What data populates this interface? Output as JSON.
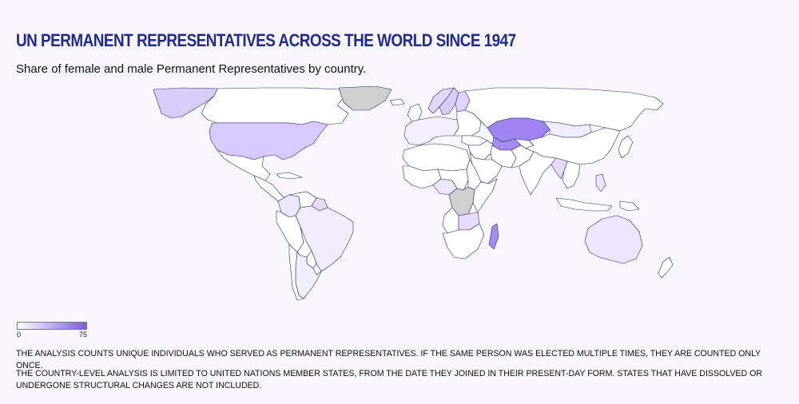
{
  "header": {
    "title": "UN PERMANENT REPRESENTATIVES ACROSS THE WORLD SINCE 1947",
    "subtitle": "Share of female and male Permanent Representatives by country."
  },
  "legend": {
    "min_label": "0",
    "max_label": "75",
    "color_low": "#ffffff",
    "color_high": "#7b5be0"
  },
  "colors": {
    "background": "#f9f6fd",
    "title": "#1f2b8f",
    "country_border": "#2d2a6e",
    "no_data": "#c8c8c8"
  },
  "notes": [
    "THE ANALYSIS COUNTS UNIQUE INDIVIDUALS WHO SERVED AS PERMANENT REPRESENTATIVES. IF THE SAME PERSON WAS ELECTED MULTIPLE TIMES, THEY ARE COUNTED ONLY ONCE.",
    "THE COUNTRY-LEVEL ANALYSIS IS LIMITED TO UNITED NATIONS MEMBER STATES, FROM THE DATE THEY JOINED IN THEIR PRESENT-DAY FORM. STATES THAT HAVE DISSOLVED OR UNDERGONE STRUCTURAL CHANGES ARE NOT INCLUDED."
  ],
  "map": {
    "regions": [
      {
        "id": "canada",
        "fill": "#ffffff"
      },
      {
        "id": "alaska",
        "fill": "#d8cdfa"
      },
      {
        "id": "greenland",
        "fill": "#cfcfcf"
      },
      {
        "id": "united-states",
        "fill": "#d6caff"
      },
      {
        "id": "mexico",
        "fill": "#ffffff"
      },
      {
        "id": "central-america",
        "fill": "#ffffff"
      },
      {
        "id": "cuba",
        "fill": "#ffffff"
      },
      {
        "id": "colombia",
        "fill": "#ece6ff"
      },
      {
        "id": "venezuela",
        "fill": "#ffffff"
      },
      {
        "id": "guyana",
        "fill": "#e6dcff"
      },
      {
        "id": "ecuador-peru",
        "fill": "#ffffff"
      },
      {
        "id": "brazil",
        "fill": "#f1edfd"
      },
      {
        "id": "bolivia",
        "fill": "#ffffff"
      },
      {
        "id": "paraguay",
        "fill": "#ffffff"
      },
      {
        "id": "argentina",
        "fill": "#f1edfd"
      },
      {
        "id": "chile",
        "fill": "#ffffff"
      },
      {
        "id": "uruguay",
        "fill": "#ffffff"
      },
      {
        "id": "iceland",
        "fill": "#ffffff"
      },
      {
        "id": "uk-ireland",
        "fill": "#ffffff"
      },
      {
        "id": "norway",
        "fill": "#e2d8ff"
      },
      {
        "id": "sweden",
        "fill": "#d8cdfa"
      },
      {
        "id": "finland",
        "fill": "#ded4ff"
      },
      {
        "id": "western-europe",
        "fill": "#f3effe"
      },
      {
        "id": "eastern-europe",
        "fill": "#ffffff"
      },
      {
        "id": "russia",
        "fill": "#ffffff"
      },
      {
        "id": "kazakhstan",
        "fill": "#9d84f0"
      },
      {
        "id": "turkmenistan",
        "fill": "#a58cf2"
      },
      {
        "id": "uzbekistan",
        "fill": "#ffffff"
      },
      {
        "id": "mongolia",
        "fill": "#f0ebfe"
      },
      {
        "id": "china",
        "fill": "#ffffff"
      },
      {
        "id": "turkey",
        "fill": "#ffffff"
      },
      {
        "id": "middle-east",
        "fill": "#ffffff"
      },
      {
        "id": "iran",
        "fill": "#ffffff"
      },
      {
        "id": "arabia",
        "fill": "#ffffff"
      },
      {
        "id": "india",
        "fill": "#ffffff"
      },
      {
        "id": "pakistan",
        "fill": "#ffffff"
      },
      {
        "id": "southeast-asia",
        "fill": "#ffffff"
      },
      {
        "id": "myanmar",
        "fill": "#e6dcff"
      },
      {
        "id": "japan",
        "fill": "#ffffff"
      },
      {
        "id": "philippines",
        "fill": "#ece6ff"
      },
      {
        "id": "indonesia",
        "fill": "#ffffff"
      },
      {
        "id": "papua-new-guinea",
        "fill": "#ffffff"
      },
      {
        "id": "australia",
        "fill": "#ece6ff"
      },
      {
        "id": "new-zealand",
        "fill": "#ffffff"
      },
      {
        "id": "north-africa",
        "fill": "#ffffff"
      },
      {
        "id": "west-africa",
        "fill": "#ffffff"
      },
      {
        "id": "ghana-nigeria",
        "fill": "#ece6ff"
      },
      {
        "id": "central-africa",
        "fill": "#ffffff"
      },
      {
        "id": "sudan",
        "fill": "#ffffff"
      },
      {
        "id": "dr-congo",
        "fill": "#cfcfcf"
      },
      {
        "id": "east-africa",
        "fill": "#ffffff"
      },
      {
        "id": "angola",
        "fill": "#ffffff"
      },
      {
        "id": "zambia",
        "fill": "#e6dcff"
      },
      {
        "id": "southern-africa",
        "fill": "#ffffff"
      },
      {
        "id": "madagascar",
        "fill": "#a58cf2"
      }
    ]
  }
}
